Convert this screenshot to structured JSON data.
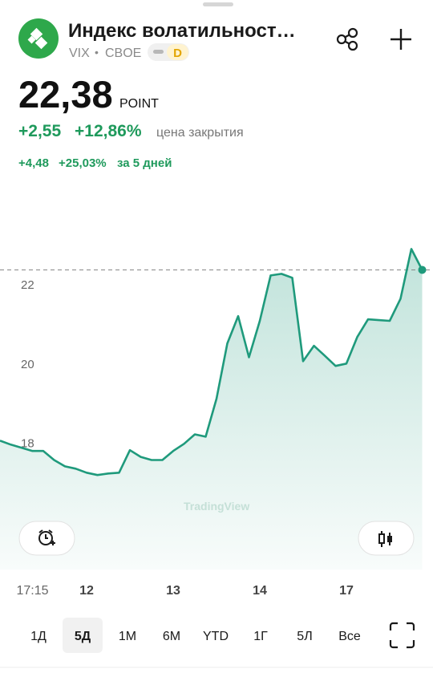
{
  "header": {
    "title": "Индекс волатильност…",
    "ticker": "VIX",
    "separator": "•",
    "exchange": "CBOE",
    "badge": "D",
    "price": "22,38",
    "unit": "POINT",
    "change": "+2,55",
    "change_pct": "+12,86%",
    "change_note": "цена закрытия",
    "period_change": "+4,48",
    "period_change_pct": "+25,03%",
    "period_note": "за 5 дней"
  },
  "chart_data": {
    "type": "line",
    "color": "#1f9a7c",
    "watermark": "TradingView",
    "categories": [
      null,
      null,
      null,
      "17:15",
      null,
      null,
      null,
      null,
      "12",
      null,
      null,
      null,
      null,
      null,
      null,
      null,
      "13",
      null,
      null,
      null,
      null,
      null,
      null,
      null,
      "14",
      null,
      null,
      null,
      null,
      null,
      null,
      null,
      "17",
      null,
      null,
      null,
      null,
      null,
      null,
      null
    ],
    "values": [
      18.06,
      17.96,
      17.88,
      17.8,
      17.8,
      17.57,
      17.41,
      17.35,
      17.25,
      17.19,
      17.23,
      17.25,
      17.82,
      17.65,
      17.57,
      17.57,
      17.8,
      17.98,
      18.22,
      18.16,
      19.12,
      20.52,
      21.21,
      20.17,
      21.09,
      22.24,
      22.28,
      22.18,
      20.07,
      20.46,
      20.21,
      19.95,
      20.01,
      20.68,
      21.13,
      21.11,
      21.09,
      21.65,
      22.91,
      22.38
    ],
    "ylim": [
      14.8,
      24.5
    ],
    "yticks": [
      18,
      20,
      22
    ],
    "grid": false
  },
  "periods": {
    "items": [
      "1Д",
      "5Д",
      "1М",
      "6М",
      "YTD",
      "1Г",
      "5Л",
      "Все"
    ],
    "selected": 1
  }
}
